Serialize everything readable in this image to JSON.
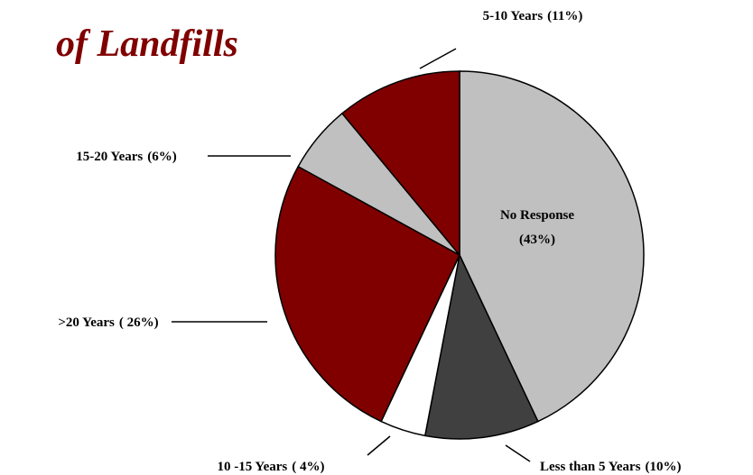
{
  "chart_data": {
    "type": "pie",
    "title": "of Landfills",
    "categories": [
      "No Response",
      "Less than 5 Years",
      "10 -15 Years",
      ">20 Years",
      "15-20 Years",
      "5-10 Years"
    ],
    "values": [
      43,
      10,
      4,
      26,
      6,
      11
    ],
    "value_labels": [
      "(43%)",
      "(10%)",
      "( 4%)",
      "( 26%)",
      "(6%)",
      "(11%)"
    ],
    "colors": [
      "#c0c0c0",
      "#404040",
      "#ffffff",
      "#800000",
      "#c0c0c0",
      "#800000"
    ]
  }
}
